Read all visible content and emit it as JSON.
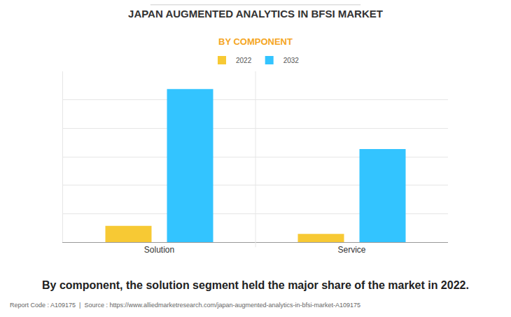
{
  "chart_data": {
    "type": "bar",
    "title": "JAPAN AUGMENTED ANALYTICS IN BFSI MARKET",
    "subtitle": "BY COMPONENT",
    "categories": [
      "Solution",
      "Service"
    ],
    "series": [
      {
        "name": "2022",
        "color": "#f7c934",
        "values": [
          0.57,
          0.29
        ]
      },
      {
        "name": "2032",
        "color": "#33c4ff",
        "values": [
          5.38,
          3.27
        ]
      }
    ],
    "ylim": [
      0,
      6
    ],
    "yticks": [
      0,
      1,
      2,
      3,
      4,
      5,
      6
    ],
    "grid": true,
    "tick_labels": "x",
    "legend": "top",
    "annotations": [
      "By component, the solution segment held the major share of the market in 2022.",
      "Report Code : A109175  |  Source : https://www.alliedmarketresearch.com/japan-augmented-analytics-in-bfsi-market-A109175"
    ]
  }
}
